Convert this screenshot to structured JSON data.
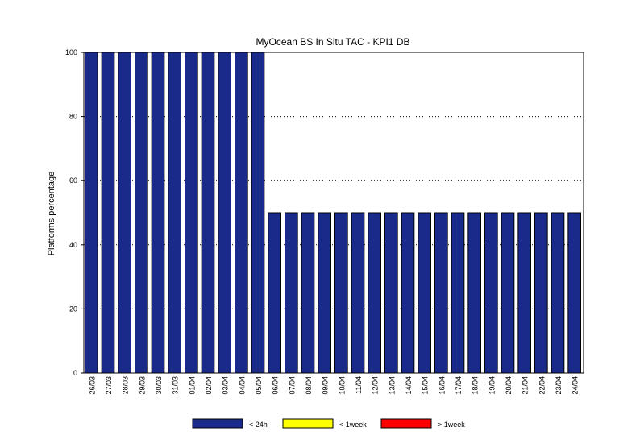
{
  "chart_data": {
    "type": "bar",
    "title": "MyOcean  BS In Situ TAC - KPI1  DB",
    "ylabel": "Platforms percentage",
    "xlabel": "",
    "ylim": [
      0,
      100
    ],
    "yticks": [
      0,
      20,
      40,
      60,
      80,
      100
    ],
    "grid": "horizontal-dotted",
    "legend_position": "bottom",
    "categories": [
      "26/03",
      "27/03",
      "28/03",
      "29/03",
      "30/03",
      "31/03",
      "01/04",
      "02/04",
      "03/04",
      "04/04",
      "05/04",
      "06/04",
      "07/04",
      "08/04",
      "09/04",
      "10/04",
      "11/04",
      "12/04",
      "13/04",
      "14/04",
      "15/04",
      "16/04",
      "17/04",
      "18/04",
      "19/04",
      "20/04",
      "21/04",
      "22/04",
      "23/04",
      "24/04"
    ],
    "series": [
      {
        "name": "< 24h",
        "color": "#1a2a8a",
        "values": [
          100,
          100,
          100,
          100,
          100,
          100,
          100,
          100,
          100,
          100,
          100,
          50,
          50,
          50,
          50,
          50,
          50,
          50,
          50,
          50,
          50,
          50,
          50,
          50,
          50,
          50,
          50,
          50,
          50,
          50
        ]
      },
      {
        "name": "< 1week",
        "color": "#ffff00",
        "values": [
          0,
          0,
          0,
          0,
          0,
          0,
          0,
          0,
          0,
          0,
          0,
          0,
          0,
          0,
          0,
          0,
          0,
          0,
          0,
          0,
          0,
          0,
          0,
          0,
          0,
          0,
          0,
          0,
          0,
          0
        ]
      },
      {
        "name": "> 1week",
        "color": "#ff0000",
        "values": [
          0,
          0,
          0,
          0,
          0,
          0,
          0,
          0,
          0,
          0,
          0,
          0,
          0,
          0,
          0,
          0,
          0,
          0,
          0,
          0,
          0,
          0,
          0,
          0,
          0,
          0,
          0,
          0,
          0,
          0
        ]
      }
    ]
  }
}
